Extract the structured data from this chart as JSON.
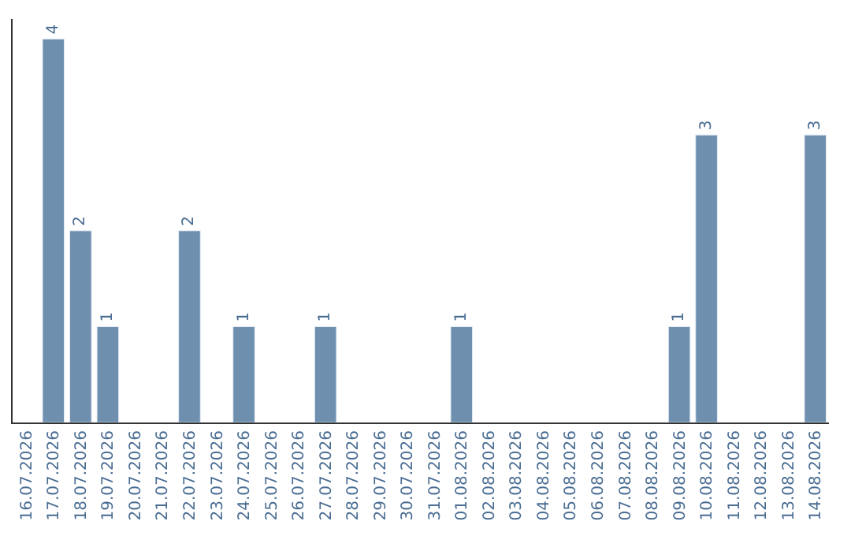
{
  "chart_data": {
    "type": "bar",
    "color": "#6e8fad",
    "categories": [
      "16.07.2026",
      "17.07.2026",
      "18.07.2026",
      "19.07.2026",
      "20.07.2026",
      "21.07.2026",
      "22.07.2026",
      "23.07.2026",
      "24.07.2026",
      "25.07.2026",
      "26.07.2026",
      "27.07.2026",
      "28.07.2026",
      "29.07.2026",
      "30.07.2026",
      "31.07.2026",
      "01.08.2026",
      "02.08.2026",
      "03.08.2026",
      "04.08.2026",
      "05.08.2026",
      "06.08.2026",
      "07.08.2026",
      "08.08.2026",
      "09.08.2026",
      "10.08.2026",
      "11.08.2026",
      "12.08.2026",
      "13.08.2026",
      "14.08.2026"
    ],
    "values": [
      null,
      4,
      2,
      1,
      null,
      null,
      2,
      null,
      1,
      null,
      null,
      1,
      null,
      null,
      null,
      null,
      1,
      null,
      null,
      null,
      null,
      null,
      null,
      null,
      1,
      3,
      null,
      null,
      null,
      3
    ],
    "data_labels": true
  }
}
